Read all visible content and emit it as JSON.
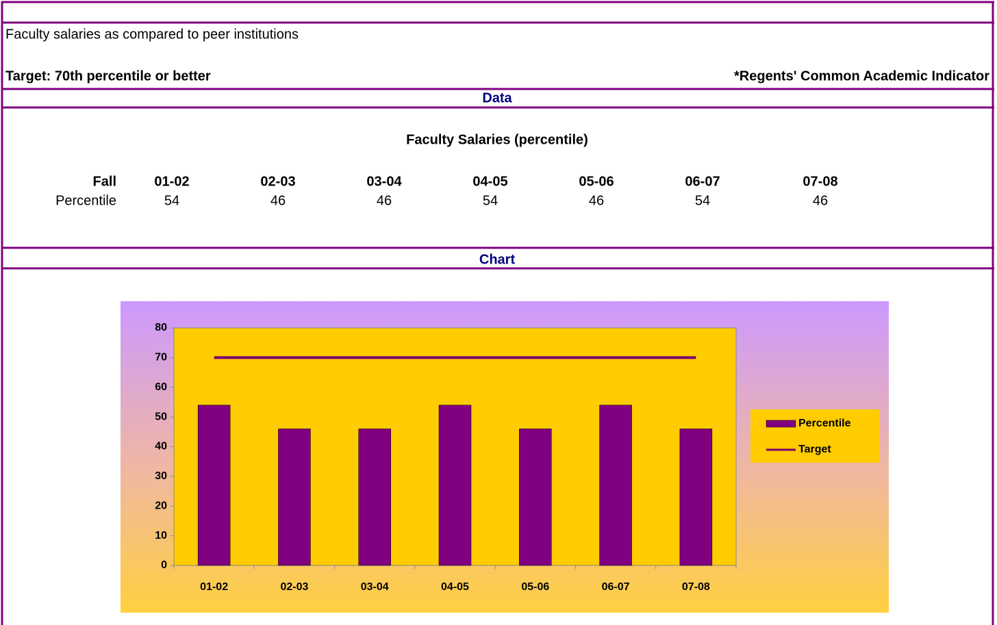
{
  "description": "Faculty salaries as compared to peer institutions",
  "target": "Target: 70th percentile or better",
  "indicator": "*Regents' Common Academic Indicator",
  "sections": [
    "Data",
    "Chart"
  ],
  "table": {
    "title": "Faculty Salaries (percentile)",
    "header": [
      "Fall",
      "01-02",
      "02-03",
      "03-04",
      "04-05",
      "05-06",
      "06-07",
      "07-08"
    ],
    "row": [
      "Percentile",
      54,
      46,
      46,
      54,
      46,
      54,
      46
    ]
  },
  "chart_data": {
    "type": "bar",
    "categories": [
      "01-02",
      "02-03",
      "03-04",
      "04-05",
      "05-06",
      "06-07",
      "07-08"
    ],
    "series": [
      {
        "name": "Percentile",
        "type": "bar",
        "color": "#800080",
        "values": [
          54,
          46,
          46,
          54,
          46,
          54,
          46
        ]
      },
      {
        "name": "Target",
        "type": "line",
        "color": "#7a0070",
        "values": [
          70,
          70,
          70,
          70,
          70,
          70,
          70
        ]
      }
    ],
    "ylim": [
      0,
      80
    ],
    "yticks": [
      0,
      10,
      20,
      30,
      40,
      50,
      60,
      70,
      80
    ],
    "legend": "right",
    "plot_color": "#ffcc00"
  }
}
